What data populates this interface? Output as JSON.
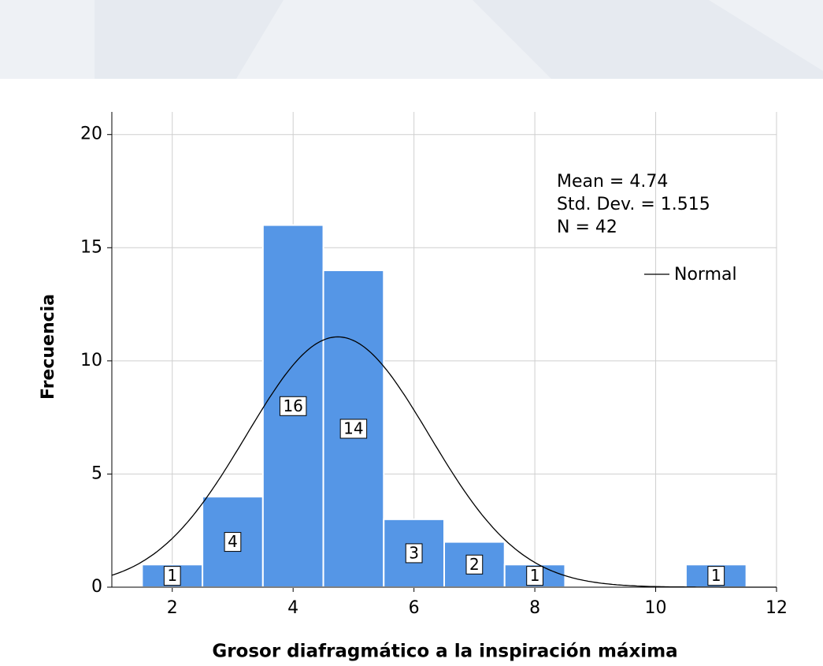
{
  "chart_data": {
    "type": "histogram",
    "x_label": "Grosor diafragmático a la inspiración máxima",
    "y_label": "Frecuencia",
    "bins": [
      1.5,
      2.5,
      3.5,
      4.5,
      5.5,
      6.5,
      7.5,
      8.5,
      9.5,
      10.5,
      11.5
    ],
    "values": [
      1,
      4,
      16,
      14,
      3,
      2,
      1,
      0,
      0,
      1
    ],
    "color": "#5596e6",
    "xlim": [
      1,
      12
    ],
    "xticks": [
      2,
      4,
      6,
      8,
      10,
      12
    ],
    "ylim": [
      0,
      21
    ],
    "yticks": [
      0,
      5,
      10,
      15,
      20
    ],
    "grid": true,
    "stats_lines": [
      "Mean = 4.74",
      "Std. Dev. = 1.515",
      "N = 42"
    ],
    "normal_curve": {
      "name": "Normal",
      "mean": 4.74,
      "std_dev": 1.515,
      "n": 42,
      "color": "#000000"
    },
    "legend_position": "upper right"
  }
}
